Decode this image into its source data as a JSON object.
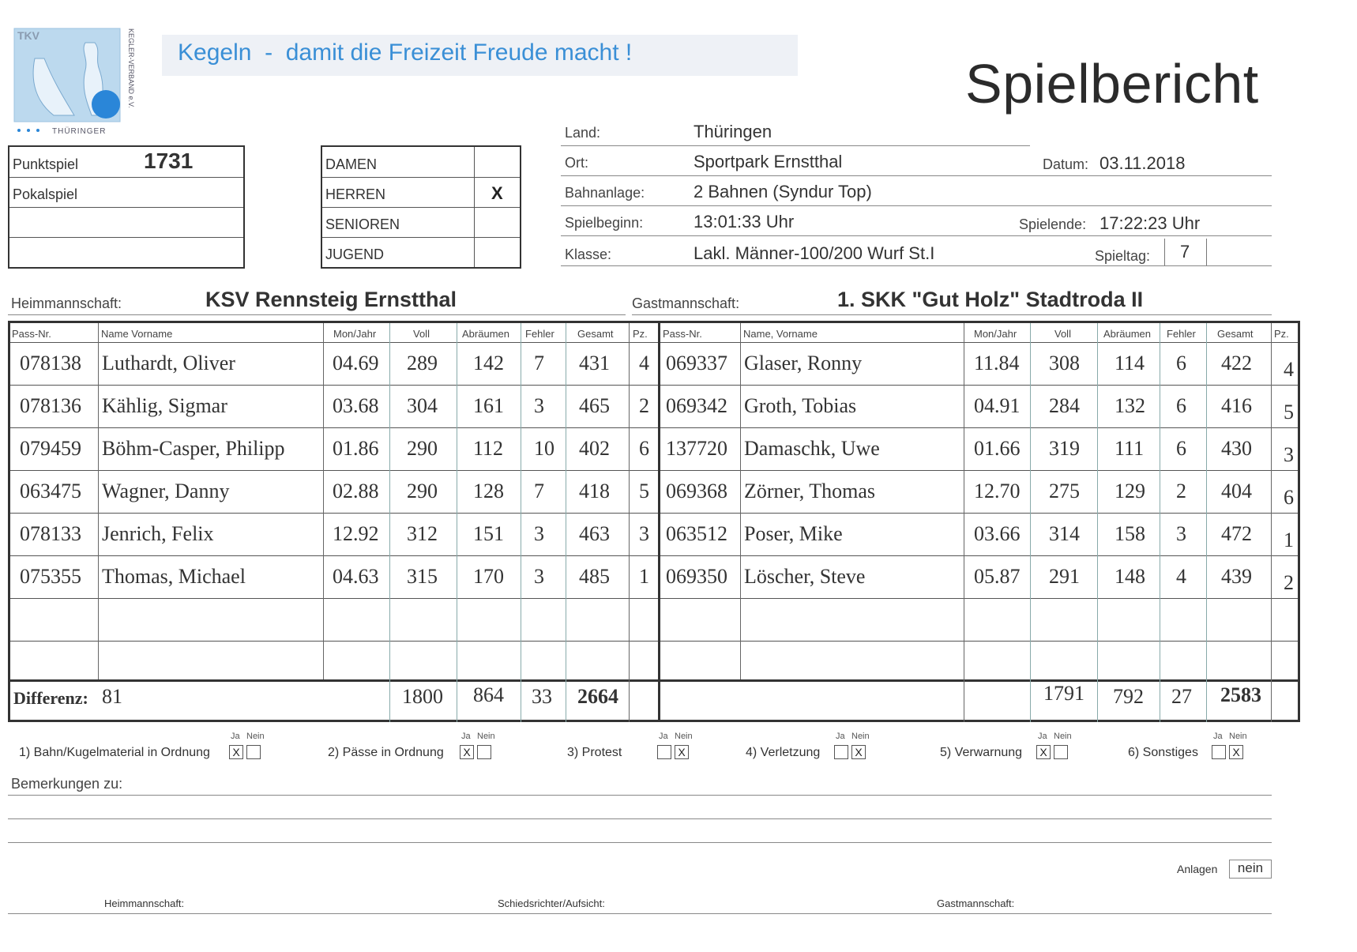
{
  "header": {
    "slogan": "Kegeln  -  damit die Freizeit Freude macht !",
    "title": "Spielbericht",
    "logo_text": "TKV",
    "logo_bottom": "THÜRINGER",
    "logo_side": "KEGLER-VERBAND e.V."
  },
  "game_type": {
    "punktspiel_label": "Punktspiel",
    "punktspiel_number": "1731",
    "pokalspiel_label": "Pokalspiel"
  },
  "category": {
    "items": [
      {
        "label": "DAMEN",
        "mark": ""
      },
      {
        "label": "HERREN",
        "mark": "X"
      },
      {
        "label": "SENIOREN",
        "mark": ""
      },
      {
        "label": "JUGEND",
        "mark": ""
      }
    ]
  },
  "info": {
    "land_label": "Land:",
    "land": "Thüringen",
    "ort_label": "Ort:",
    "ort": "Sportpark Ernstthal",
    "datum_label": "Datum:",
    "datum": "03.11.2018",
    "bahn_label": "Bahnanlage:",
    "bahn": "2 Bahnen (Syndur Top)",
    "beginn_label": "Spielbeginn:",
    "beginn": "13:01:33 Uhr",
    "ende_label": "Spielende:",
    "ende": "17:22:23 Uhr",
    "klasse_label": "Klasse:",
    "klasse": "Lakl. Männer-100/200 Wurf St.I",
    "spieltag_label": "Spieltag:",
    "spieltag": "7"
  },
  "teams": {
    "home_label": "Heimmannschaft:",
    "home": "KSV Rennsteig Ernstthal",
    "guest_label": "Gastmannschaft:",
    "guest": "1. SKK \"Gut Holz\" Stadtroda II"
  },
  "table": {
    "home_headers": [
      "Pass-Nr.",
      "Name Vorname",
      "Mon/Jahr",
      "Voll",
      "Abräumen",
      "Fehler",
      "Gesamt",
      "Pz."
    ],
    "guest_headers": [
      "Pass-Nr.",
      "Name, Vorname",
      "Mon/Jahr",
      "Voll",
      "Abräumen",
      "Fehler",
      "Gesamt",
      "Pz."
    ],
    "home_rows": [
      [
        "078138",
        "Luthardt, Oliver",
        "04.69",
        "289",
        "142",
        "7",
        "431",
        "4"
      ],
      [
        "078136",
        "Kählig, Sigmar",
        "03.68",
        "304",
        "161",
        "3",
        "465",
        "2"
      ],
      [
        "079459",
        "Böhm-Casper, Philipp",
        "01.86",
        "290",
        "112",
        "10",
        "402",
        "6"
      ],
      [
        "063475",
        "Wagner, Danny",
        "02.88",
        "290",
        "128",
        "7",
        "418",
        "5"
      ],
      [
        "078133",
        "Jenrich, Felix",
        "12.92",
        "312",
        "151",
        "3",
        "463",
        "3"
      ],
      [
        "075355",
        "Thomas, Michael",
        "04.63",
        "315",
        "170",
        "3",
        "485",
        "1"
      ]
    ],
    "guest_rows": [
      [
        "069337",
        "Glaser, Ronny",
        "11.84",
        "308",
        "114",
        "6",
        "422",
        "4"
      ],
      [
        "069342",
        "Groth, Tobias",
        "04.91",
        "284",
        "132",
        "6",
        "416",
        "5"
      ],
      [
        "137720",
        "Damaschk, Uwe",
        "01.66",
        "319",
        "111",
        "6",
        "430",
        "3"
      ],
      [
        "069368",
        "Zörner, Thomas",
        "12.70",
        "275",
        "129",
        "2",
        "404",
        "6"
      ],
      [
        "063512",
        "Poser, Mike",
        "03.66",
        "314",
        "158",
        "3",
        "472",
        "1"
      ],
      [
        "069350",
        "Löscher, Steve",
        "05.87",
        "291",
        "148",
        "4",
        "439",
        "2"
      ]
    ],
    "differenz_label": "Differenz:",
    "differenz": "81",
    "home_totals": [
      "1800",
      "864",
      "33",
      "2664"
    ],
    "guest_totals": [
      "1791",
      "792",
      "27",
      "2583"
    ]
  },
  "checks": {
    "ja": "Ja",
    "nein": "Nein",
    "items": [
      {
        "label": "1) Bahn/Kugelmaterial in Ordnung",
        "ja": "X",
        "nein": ""
      },
      {
        "label": "2) Pässe in Ordnung",
        "ja": "X",
        "nein": ""
      },
      {
        "label": "3) Protest",
        "ja": "",
        "nein": "X"
      },
      {
        "label": "4) Verletzung",
        "ja": "",
        "nein": "X"
      },
      {
        "label": "5) Verwarnung",
        "ja": "X",
        "nein": ""
      },
      {
        "label": "6) Sonstiges",
        "ja": "",
        "nein": "X"
      }
    ]
  },
  "remarks": {
    "label": "Bemerkungen zu:"
  },
  "anlagen": {
    "label": "Anlagen",
    "value": "nein"
  },
  "signatures": {
    "home": "Heimmannschaft:",
    "referee": "Schiedsrichter/Aufsicht:",
    "guest": "Gastmannschaft:"
  }
}
